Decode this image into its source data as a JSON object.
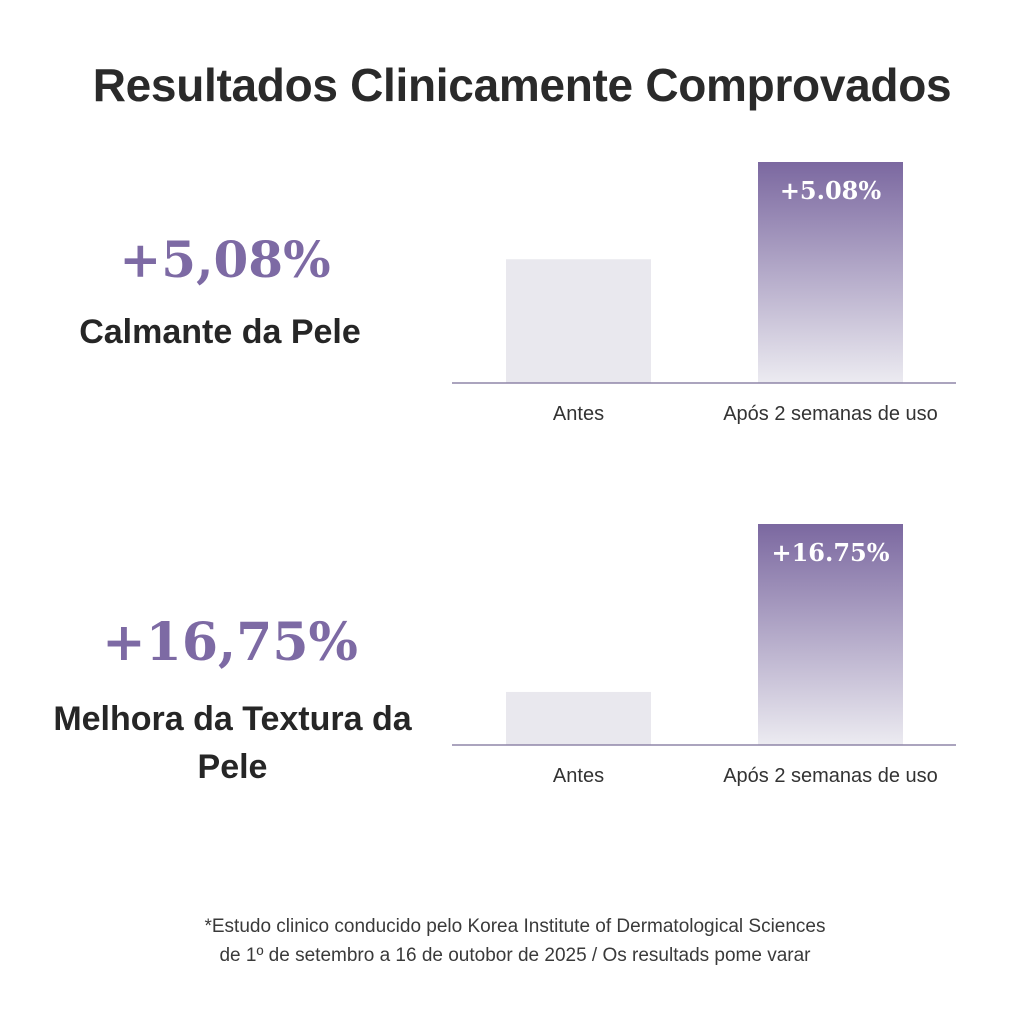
{
  "title": "Resultados Clinicamente Comprovados",
  "stats": [
    {
      "value": "+5,08%",
      "label": "Calmante da Pele"
    },
    {
      "value": "+16,75%",
      "label": "Melhora da Textura da Pele"
    }
  ],
  "colors": {
    "accent": "#7d6aa4",
    "bar_top": "#7b68a0",
    "bar_bottom": "#ecebf1",
    "before_bar": "#e9e8ee",
    "baseline": "#8f86a8"
  },
  "chart_data": [
    {
      "type": "bar",
      "categories": [
        "Antes",
        "Após 2 semanas de uso"
      ],
      "values": [
        0.56,
        1.0
      ],
      "value_unit": "relative bar height (fraction of tallest bar)",
      "data_labels": [
        "",
        "+5.08%"
      ],
      "legend": "none",
      "grid": false
    },
    {
      "type": "bar",
      "categories": [
        "Antes",
        "Após 2 semanas de uso"
      ],
      "values": [
        0.24,
        1.0
      ],
      "value_unit": "relative bar height (fraction of tallest bar)",
      "data_labels": [
        "",
        "+16.75%"
      ],
      "legend": "none",
      "grid": false
    }
  ],
  "footnote": {
    "line1": "*Estudo clinico conducido pelo Korea Institute of Dermatological Sciences",
    "line2": "de 1º de setembro a 16 de outobor de 2025 / Os resultads pome varar"
  }
}
